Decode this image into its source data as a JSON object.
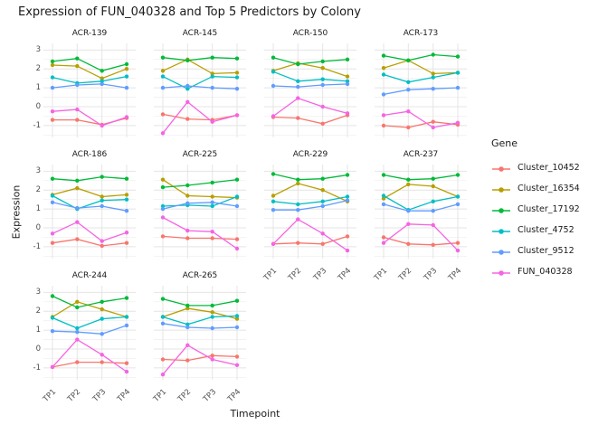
{
  "title": "Expression of FUN_040328 and Top 5 Predictors by Colony",
  "chart_data": {
    "type": "line",
    "title": "Expression of FUN_040328 and Top 5 Predictors by Colony",
    "xlabel": "Timepoint",
    "ylabel": "Expression",
    "legend_title": "Gene",
    "legend_position": "right",
    "grid": true,
    "x": [
      "TP1",
      "TP2",
      "TP3",
      "TP4"
    ],
    "y_ticks": [
      3,
      2,
      1,
      0,
      -1
    ],
    "ylim": [
      -1.63,
      3.35
    ],
    "genes": [
      {
        "name": "Cluster_10452",
        "color": "#F8766D"
      },
      {
        "name": "Cluster_16354",
        "color": "#B79F00"
      },
      {
        "name": "Cluster_17192",
        "color": "#00BA38"
      },
      {
        "name": "Cluster_4752",
        "color": "#00BFC4"
      },
      {
        "name": "Cluster_9512",
        "color": "#619CFF"
      },
      {
        "name": "FUN_040328",
        "color": "#F564E3"
      }
    ],
    "facets": [
      {
        "colony": "ACR-139",
        "series": [
          [
            -0.7,
            -0.7,
            -0.95,
            -0.6
          ],
          [
            2.2,
            2.15,
            1.5,
            2.0
          ],
          [
            2.4,
            2.55,
            1.9,
            2.25
          ],
          [
            1.55,
            1.25,
            1.35,
            1.6
          ],
          [
            1.0,
            1.15,
            1.2,
            1.0
          ],
          [
            -0.25,
            -0.15,
            -1.0,
            -0.55
          ]
        ]
      },
      {
        "colony": "ACR-145",
        "series": [
          [
            -0.4,
            -0.65,
            -0.7,
            -0.45
          ],
          [
            1.9,
            2.5,
            1.75,
            1.8
          ],
          [
            2.6,
            2.45,
            2.6,
            2.55
          ],
          [
            1.6,
            0.95,
            1.6,
            1.55
          ],
          [
            1.0,
            1.1,
            1.0,
            0.95
          ],
          [
            -1.4,
            0.25,
            -0.8,
            -0.45
          ]
        ]
      },
      {
        "colony": "ACR-150",
        "series": [
          [
            -0.55,
            -0.6,
            -0.9,
            -0.45
          ],
          [
            1.9,
            2.3,
            2.05,
            1.6
          ],
          [
            2.6,
            2.25,
            2.4,
            2.5
          ],
          [
            1.85,
            1.35,
            1.45,
            1.35
          ],
          [
            1.1,
            1.05,
            1.15,
            1.2
          ],
          [
            -0.5,
            0.45,
            0.0,
            -0.35
          ]
        ]
      },
      {
        "colony": "ACR-173",
        "series": [
          [
            -1.0,
            -1.1,
            -0.8,
            -0.95
          ],
          [
            2.05,
            2.45,
            1.75,
            1.8
          ],
          [
            2.7,
            2.45,
            2.75,
            2.65
          ],
          [
            1.7,
            1.3,
            1.55,
            1.8
          ],
          [
            0.65,
            0.9,
            0.95,
            1.0
          ],
          [
            -0.45,
            -0.25,
            -1.1,
            -0.85
          ]
        ]
      },
      {
        "colony": "ACR-186",
        "series": [
          [
            -0.8,
            -0.6,
            -0.95,
            -0.8
          ],
          [
            1.75,
            2.1,
            1.65,
            1.75
          ],
          [
            2.6,
            2.5,
            2.7,
            2.6
          ],
          [
            1.7,
            1.0,
            1.45,
            1.5
          ],
          [
            1.35,
            1.05,
            1.15,
            0.9
          ],
          [
            -0.3,
            0.3,
            -0.7,
            -0.25
          ]
        ]
      },
      {
        "colony": "ACR-225",
        "series": [
          [
            -0.45,
            -0.55,
            -0.55,
            -0.6
          ],
          [
            2.55,
            1.7,
            1.65,
            1.6
          ],
          [
            2.15,
            2.25,
            2.4,
            2.55
          ],
          [
            1.15,
            1.2,
            1.15,
            1.65
          ],
          [
            1.0,
            1.3,
            1.35,
            1.15
          ],
          [
            0.55,
            -0.15,
            -0.2,
            -1.1
          ]
        ]
      },
      {
        "colony": "ACR-229",
        "series": [
          [
            -0.85,
            -0.8,
            -0.85,
            -0.45
          ],
          [
            1.7,
            2.35,
            2.0,
            1.4
          ],
          [
            2.85,
            2.55,
            2.6,
            2.8
          ],
          [
            1.4,
            1.25,
            1.4,
            1.65
          ],
          [
            0.95,
            0.95,
            1.15,
            1.45
          ],
          [
            -0.85,
            0.45,
            -0.3,
            -1.2
          ]
        ]
      },
      {
        "colony": "ACR-237",
        "series": [
          [
            -0.5,
            -0.85,
            -0.9,
            -0.8
          ],
          [
            1.55,
            2.3,
            2.2,
            1.65
          ],
          [
            2.8,
            2.55,
            2.6,
            2.8
          ],
          [
            1.7,
            0.95,
            1.4,
            1.65
          ],
          [
            1.25,
            0.9,
            0.9,
            1.25
          ],
          [
            -0.8,
            0.2,
            0.15,
            -1.2
          ]
        ]
      },
      {
        "colony": "ACR-244",
        "series": [
          [
            -0.95,
            -0.7,
            -0.7,
            -0.75
          ],
          [
            1.7,
            2.5,
            2.1,
            1.7
          ],
          [
            2.8,
            2.2,
            2.5,
            2.7
          ],
          [
            1.65,
            1.1,
            1.6,
            1.7
          ],
          [
            0.95,
            0.9,
            0.8,
            1.25
          ],
          [
            -0.95,
            0.5,
            -0.3,
            -1.2
          ]
        ]
      },
      {
        "colony": "ACR-265",
        "series": [
          [
            -0.55,
            -0.6,
            -0.35,
            -0.4
          ],
          [
            1.7,
            2.15,
            1.95,
            1.6
          ],
          [
            2.65,
            2.3,
            2.3,
            2.55
          ],
          [
            1.7,
            1.3,
            1.7,
            1.75
          ],
          [
            1.35,
            1.15,
            1.1,
            1.15
          ],
          [
            -1.35,
            0.2,
            -0.55,
            -0.85
          ]
        ]
      }
    ],
    "style": {
      "grid_major_color": "#e4e4e4",
      "grid_minor_color": "#f1f1f1",
      "minor_ticks": [
        2.5,
        1.5,
        0.5,
        -0.5,
        -1.5
      ]
    }
  }
}
